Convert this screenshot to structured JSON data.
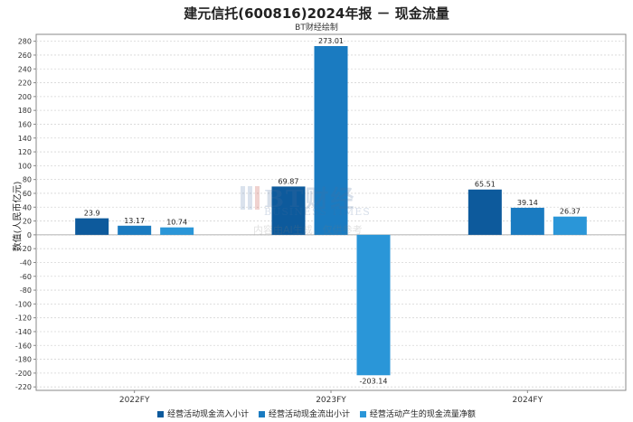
{
  "chart_data": {
    "type": "bar",
    "title": "建元信托(600816)2024年报 － 现金流量",
    "subtitle": "BT财经绘制",
    "ylabel": "数值(人民币亿元)",
    "xlabel": "",
    "categories": [
      "2022FY",
      "2023FY",
      "2024FY"
    ],
    "series": [
      {
        "name": "经营活动现金流入小计",
        "color": "#0d5a9c",
        "values": [
          23.9,
          69.87,
          65.51
        ]
      },
      {
        "name": "经营活动现金流出小计",
        "color": "#1a7bc1",
        "values": [
          13.17,
          273.01,
          39.14
        ]
      },
      {
        "name": "经营活动产生的现金流量净额",
        "color": "#2a96d8",
        "values": [
          10.74,
          -203.14,
          26.37
        ]
      }
    ],
    "data_labels": [
      [
        "23.9",
        "13.17",
        "10.74"
      ],
      [
        "69.87",
        "273.01",
        "-203.14"
      ],
      [
        "65.51",
        "39.14",
        "26.37"
      ]
    ],
    "ylim": [
      -225,
      290
    ],
    "yticks": [
      -220,
      -200,
      -180,
      -160,
      -140,
      -120,
      -100,
      -80,
      -60,
      -40,
      -20,
      0,
      20,
      40,
      60,
      80,
      100,
      120,
      140,
      160,
      180,
      200,
      220,
      240,
      260,
      280
    ],
    "grid": true,
    "legend_position": "bottom"
  },
  "watermark": {
    "logo_text": "BT财经",
    "logo_subtext": "BUSINESS TIMES",
    "note": "内容由AI生成，仅供参考"
  }
}
